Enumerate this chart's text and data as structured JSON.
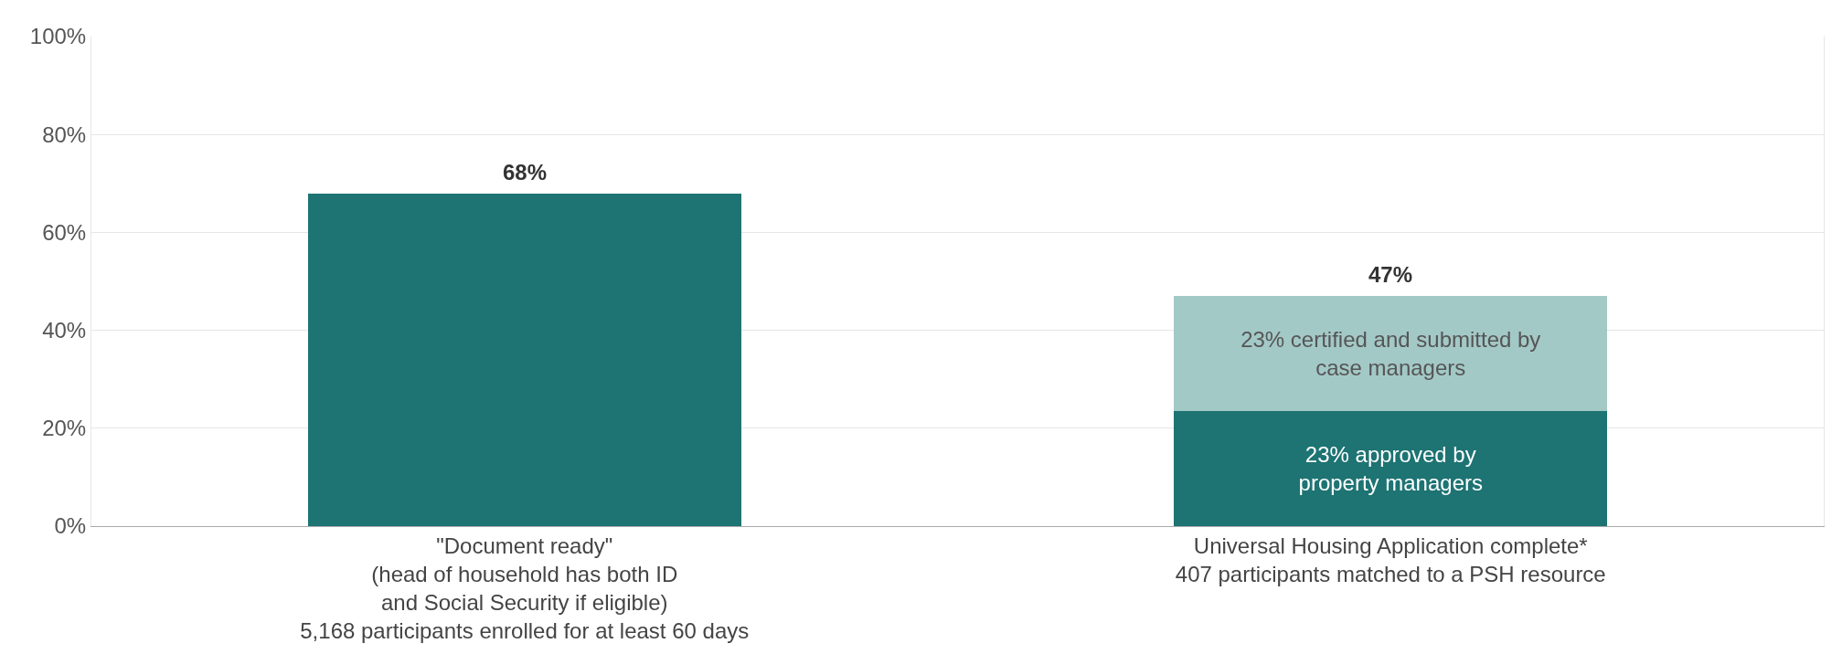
{
  "chart_data": {
    "type": "bar",
    "stacked": true,
    "categories": [
      "\"Document ready\"\n(head of household has both ID\nand Social Security if eligible)\n5,168 participants enrolled for at least 60 days",
      "Universal Housing Application complete*\n407 participants matched to a PSH resource"
    ],
    "series": [
      {
        "color": "#1e7373",
        "values": [
          68,
          23.5
        ],
        "value_labels": [
          null,
          "23% approved by\nproperty managers"
        ]
      },
      {
        "color": "#a3c9c7",
        "values": [
          null,
          23.5
        ],
        "value_labels": [
          null,
          "23% certified and submitted by\ncase managers"
        ]
      }
    ],
    "totals": [
      "68%",
      "47%"
    ],
    "ylim": [
      0,
      100
    ],
    "yticks": [
      {
        "value": 0,
        "label": "0%"
      },
      {
        "value": 20,
        "label": "20%"
      },
      {
        "value": 40,
        "label": "40%"
      },
      {
        "value": 60,
        "label": "60%"
      },
      {
        "value": 80,
        "label": "80%"
      },
      {
        "value": 100,
        "label": "100%"
      }
    ],
    "grid": "y"
  }
}
